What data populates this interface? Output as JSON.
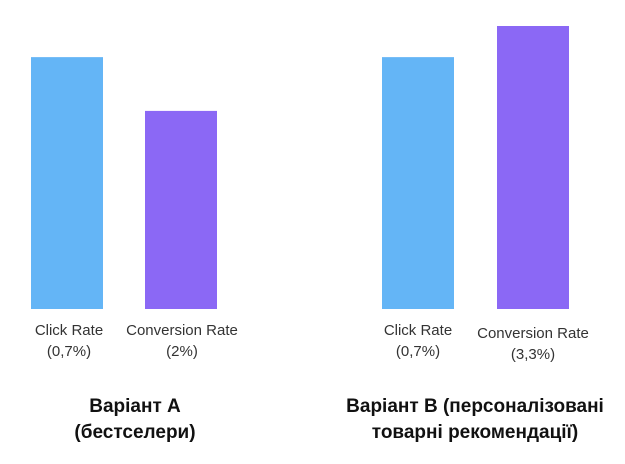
{
  "chart_data": {
    "type": "bar",
    "groups": [
      {
        "title_line1": "Варіант А",
        "title_line2": "(бестселери)",
        "bars": [
          {
            "label": "Click Rate",
            "value_label": "(0,7%)",
            "color": "#64b5f6"
          },
          {
            "label": "Conversion Rate",
            "value_label": "(2%)",
            "color": "#8b68f5"
          }
        ]
      },
      {
        "title_line1": "Варіант В (персоналізовані",
        "title_line2": "товарні рекомендації)",
        "bars": [
          {
            "label": "Click Rate",
            "value_label": "(0,7%)",
            "color": "#64b5f6"
          },
          {
            "label": "Conversion Rate",
            "value_label": "(3,3%)",
            "color": "#8b68f5"
          }
        ]
      }
    ],
    "bar_levels": [
      0.89,
      0.7,
      0.89,
      1.0
    ],
    "grid": false,
    "legend": "none"
  }
}
